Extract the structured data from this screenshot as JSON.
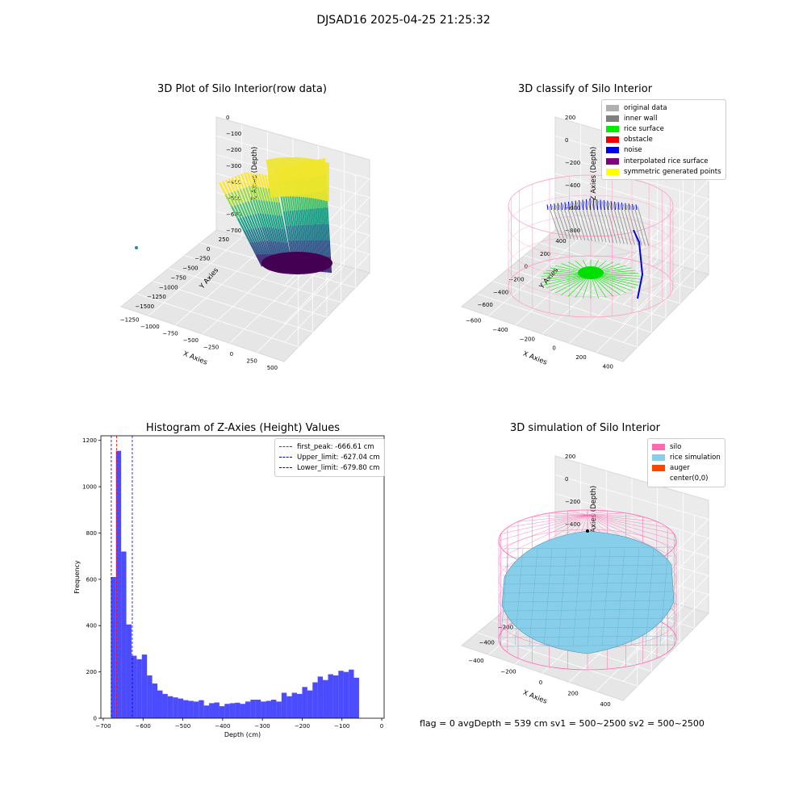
{
  "figure": {
    "suptitle": "DJSAD16 2025-04-25 21:25:32",
    "footer": "flag = 0     avgDepth = 539 cm  sv1 = 500~2500  sv2 = 500~2500"
  },
  "panels": {
    "raw": {
      "title": "3D Plot of Silo Interior(row data)",
      "xlabel": "X Axies",
      "ylabel": "Y Axies",
      "zlabel": "Z Axies (Depth)",
      "xticks": [
        "−1250",
        "−1000",
        "−750",
        "−500",
        "−250",
        "0",
        "250",
        "500"
      ],
      "yticks": [
        "250",
        "0",
        "−250",
        "−500",
        "−750",
        "−1000",
        "−1250",
        "−1500"
      ],
      "zticks": [
        "0",
        "−100",
        "−200",
        "−300",
        "−400",
        "−500",
        "−600",
        "−700"
      ],
      "colormap": "viridis"
    },
    "classify": {
      "title": "3D classify of Silo Interior",
      "xlabel": "X Axies",
      "ylabel": "Y Axies",
      "zlabel": "Z Axies (Depth)",
      "xticks": [
        "−600",
        "−400",
        "−200",
        "0",
        "200",
        "400"
      ],
      "yticks": [
        "400",
        "200",
        "0",
        "−200",
        "−400",
        "−600"
      ],
      "zticks": [
        "200",
        "0",
        "−200",
        "−400",
        "−600",
        "−800"
      ],
      "legend": [
        {
          "label": "original data",
          "color": "#b0b0b0"
        },
        {
          "label": "inner wall",
          "color": "#808080"
        },
        {
          "label": "rice surface",
          "color": "#00ee00"
        },
        {
          "label": "obstacle",
          "color": "#ee0000"
        },
        {
          "label": "noise",
          "color": "#0000ee"
        },
        {
          "label": "interpolated rice surface",
          "color": "#800080"
        },
        {
          "label": "symmetric generated points",
          "color": "#ffff00"
        }
      ]
    },
    "simulation": {
      "title": "3D simulation of Silo Interior",
      "xlabel": "X Axies",
      "ylabel": "Y Axies",
      "zlabel": "Z Axies (Depth)",
      "xticks": [
        "−400",
        "−200",
        "0",
        "200",
        "400"
      ],
      "yticks": [
        "400",
        "200",
        "0",
        "−200",
        "−400"
      ],
      "zticks": [
        "200",
        "0",
        "−200",
        "−400",
        "−600",
        "−800"
      ],
      "legend": [
        {
          "label": "silo",
          "color": "#ff69b4"
        },
        {
          "label": "rice simulation",
          "color": "#87ceeb"
        },
        {
          "label": "auger",
          "color": "#ff4500"
        },
        {
          "label": "center(0,0)",
          "color": ""
        }
      ]
    }
  },
  "chart_data": {
    "type": "bar",
    "title": "Histogram of Z-Axies (Height) Values",
    "xlabel": "Depth (cm)",
    "ylabel": "Frequency",
    "xlim": [
      -706,
      6
    ],
    "ylim": [
      0,
      1220
    ],
    "xticks": [
      -700,
      -600,
      -500,
      -400,
      -300,
      -200,
      -100,
      0
    ],
    "yticks": [
      0,
      200,
      400,
      600,
      800,
      1000,
      1200
    ],
    "bar_color": "#0000ff",
    "bin_start": -681,
    "bin_width": 13,
    "values": [
      610,
      1155,
      720,
      405,
      270,
      255,
      275,
      185,
      150,
      120,
      105,
      95,
      90,
      85,
      78,
      75,
      72,
      78,
      55,
      65,
      68,
      52,
      62,
      65,
      67,
      62,
      72,
      80,
      80,
      72,
      75,
      80,
      72,
      110,
      95,
      110,
      105,
      135,
      120,
      155,
      180,
      165,
      190,
      185,
      205,
      200,
      210,
      175
    ],
    "lines": [
      {
        "label": "first_peak: -666.61 cm",
        "x": -666.61,
        "color": "#ff0000"
      },
      {
        "label": "Upper_limit: -627.04 cm",
        "x": -627.04,
        "color": "#0000cc"
      },
      {
        "label": "Lower_limit: -679.80 cm",
        "x": -679.8,
        "color": "#0000cc"
      }
    ]
  }
}
